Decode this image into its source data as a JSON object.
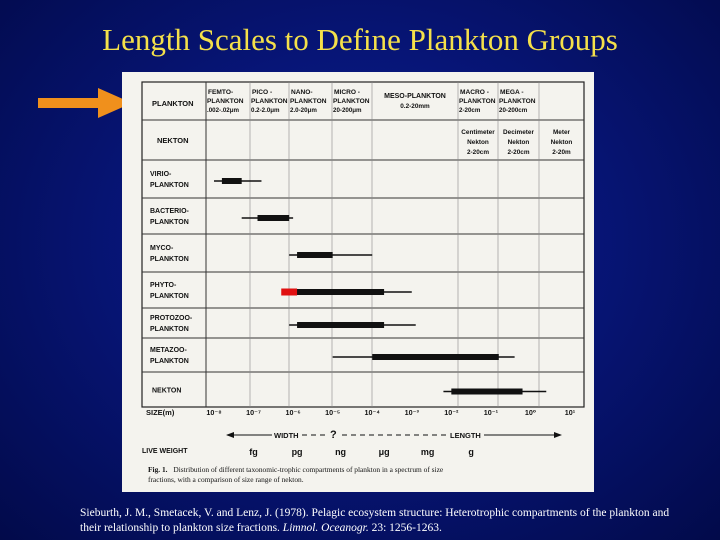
{
  "slide": {
    "title": "Length Scales to Define Plankton Groups",
    "arrow_color": "#f0901c"
  },
  "figure": {
    "header_row_label": "PLANKTON",
    "nekton_row_label": "NEKTON",
    "size_classes": [
      {
        "line1": "FEMTO-",
        "line2": "PLANKTON",
        "line3": ".002-.02μm"
      },
      {
        "line1": "PICO -",
        "line2": "PLANKTON",
        "line3": "0.2-2.0μm"
      },
      {
        "line1": "NANO-",
        "line2": "PLANKTON",
        "line3": "2.0-20μm"
      },
      {
        "line1": "MICRO -",
        "line2": "PLANKTON",
        "line3": "20-200μm"
      },
      {
        "line1": "MESO-PLANKTON",
        "line2": "0.2-20mm",
        "line3": ""
      },
      {
        "line1": "MACRO -",
        "line2": "PLANKTON",
        "line3": "2-20cm"
      },
      {
        "line1": "MEGA -",
        "line2": "PLANKTON",
        "line3": "20-200cm"
      }
    ],
    "nekton_classes": [
      {
        "line1": "Centimeter",
        "line2": "Nekton",
        "line3": "2-20cm"
      },
      {
        "line1": "Decimeter",
        "line2": "Nekton",
        "line3": "2-20cm"
      },
      {
        "line1": "Meter",
        "line2": "Nekton",
        "line3": "2-20m"
      }
    ],
    "groups": [
      {
        "line1": "VIRIO-",
        "line2": "PLANKTON",
        "range_log_m": [
          -8,
          -6.8
        ],
        "core_log_m": [
          -7.8,
          -7.3
        ],
        "core_color": "#111111"
      },
      {
        "line1": "BACTERIO-",
        "line2": "PLANKTON",
        "range_log_m": [
          -7.3,
          -6
        ],
        "core_log_m": [
          -6.9,
          -6.1
        ],
        "core_color": "#111111"
      },
      {
        "line1": "MYCO-",
        "line2": "PLANKTON",
        "range_log_m": [
          -6.1,
          -4
        ],
        "core_log_m": [
          -5.9,
          -5
        ],
        "core_color": "#111111"
      },
      {
        "line1": "PHYTO-",
        "line2": "PLANKTON",
        "range_log_m": [
          -6.2,
          -3
        ],
        "core_log_m": [
          -6,
          -3.7
        ],
        "core_color": "#111111",
        "highlight_log_m": [
          -6.3,
          -5.9
        ],
        "highlight_color": "#e01010"
      },
      {
        "line1": "PROTOZOO-",
        "line2": "PLANKTON",
        "range_log_m": [
          -6.1,
          -2.9
        ],
        "core_log_m": [
          -5.9,
          -3.7
        ],
        "core_color": "#111111"
      },
      {
        "line1": "METAZOO-",
        "line2": "PLANKTON",
        "range_log_m": [
          -5,
          -0.4
        ],
        "core_log_m": [
          -4,
          -0.8
        ],
        "core_color": "#111111"
      },
      {
        "line1": "NEKTON",
        "line2": "",
        "range_log_m": [
          -2.2,
          0.4
        ],
        "core_log_m": [
          -2,
          -0.2
        ],
        "core_color": "#111111"
      }
    ],
    "size_axis": {
      "label": "SIZE(m)",
      "ticks": [
        "10⁻⁸",
        "10⁻⁷",
        "10⁻⁶",
        "10⁻⁵",
        "10⁻⁴",
        "10⁻³",
        "10⁻²",
        "10⁻¹",
        "10⁰",
        "10¹"
      ]
    },
    "scale_row": {
      "live_weight_label": "LIVE WEIGHT",
      "width_label": "WIDTH",
      "question_mark": "?",
      "length_label": "LENGTH",
      "weights": [
        "fg",
        "pg",
        "ng",
        "μg",
        "mg",
        "g"
      ]
    },
    "caption": {
      "fig_label": "Fig. 1.",
      "line1": "Distribution of different taxonomic-trophic compartments of plankton in a spectrum of size",
      "line2": "fractions, with a comparison of size range of nekton."
    }
  },
  "citation": {
    "authors_text": "Sieburth, J. M., Smetacek, V. and Lenz, J. (1978). Pelagic ecosystem structure: Heterotrophic compartments of the plankton and their relationship to plankton size fractions.",
    "journal": "Limnol. Oceanogr.",
    "volume_pages": "23: 1256-1263."
  }
}
